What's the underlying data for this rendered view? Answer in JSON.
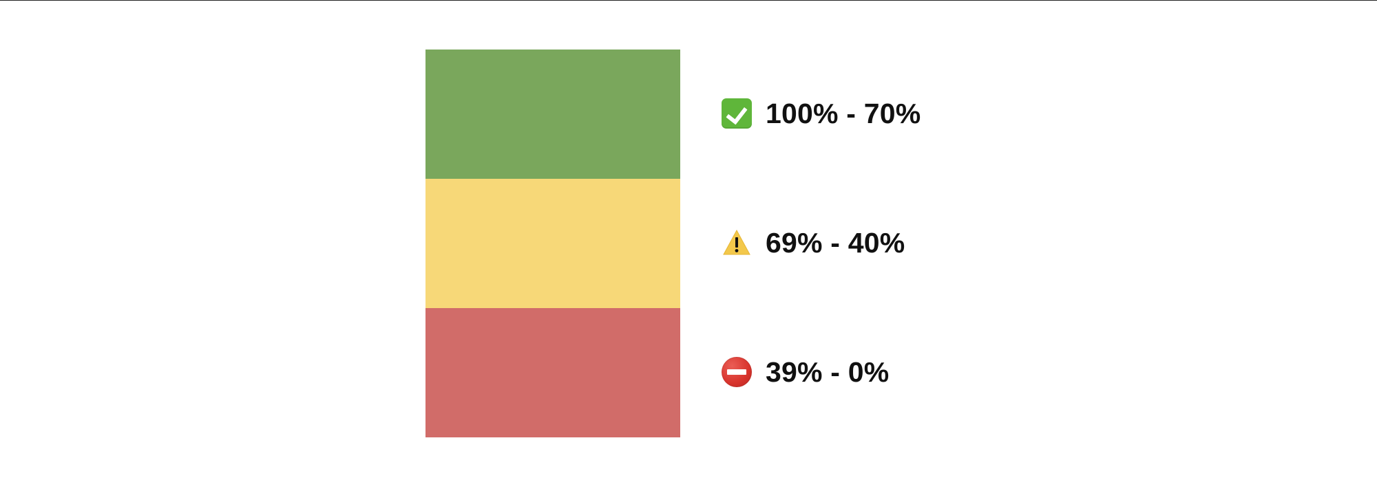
{
  "colors": {
    "high": "#7aa75c",
    "medium": "#f7d878",
    "low": "#d16c69",
    "text": "#111111"
  },
  "legend": {
    "items": [
      {
        "icon": "check-icon",
        "label": "100% - 70%"
      },
      {
        "icon": "warning-icon",
        "label": "69% - 40%"
      },
      {
        "icon": "no-entry-icon",
        "label": "39% - 0%"
      }
    ]
  }
}
